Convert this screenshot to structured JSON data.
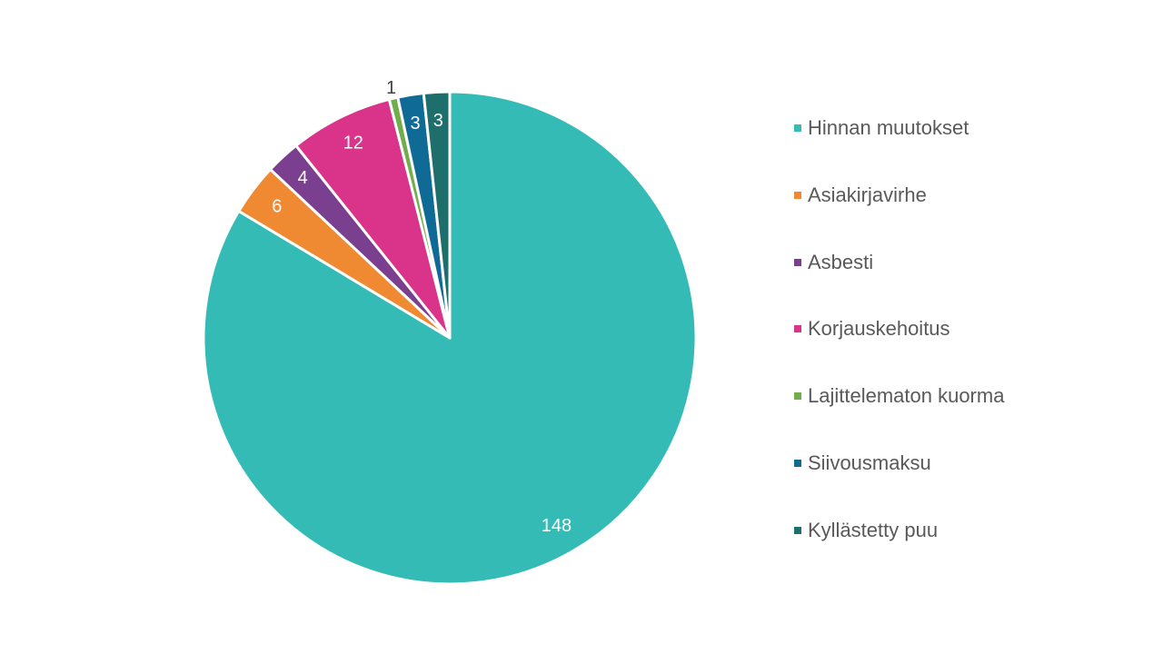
{
  "chart_data": {
    "type": "pie",
    "title": "",
    "start_angle_deg": 0,
    "direction": "clockwise",
    "legend_position": "right",
    "slices": [
      {
        "label": "Hinnan muutokset",
        "value": 148,
        "color": "#35BBB5",
        "label_color": "#ffffff",
        "label_inside": true
      },
      {
        "label": "Asiakirjavirhe",
        "value": 6,
        "color": "#F08A32",
        "label_color": "#ffffff",
        "label_inside": true
      },
      {
        "label": "Asbesti",
        "value": 4,
        "color": "#7B3F8F",
        "label_color": "#ffffff",
        "label_inside": true
      },
      {
        "label": "Korjauskehoitus",
        "value": 12,
        "color": "#D9338A",
        "label_color": "#ffffff",
        "label_inside": true
      },
      {
        "label": "Lajittelematon kuorma",
        "value": 1,
        "color": "#71AD4A",
        "label_color": "#404040",
        "label_inside": false
      },
      {
        "label": "Siivousmaksu",
        "value": 3,
        "color": "#0F6B96",
        "label_color": "#ffffff",
        "label_inside": true
      },
      {
        "label": "Kyllästetty puu",
        "value": 3,
        "color": "#1E6F6B",
        "label_color": "#ffffff",
        "label_inside": true
      }
    ]
  }
}
